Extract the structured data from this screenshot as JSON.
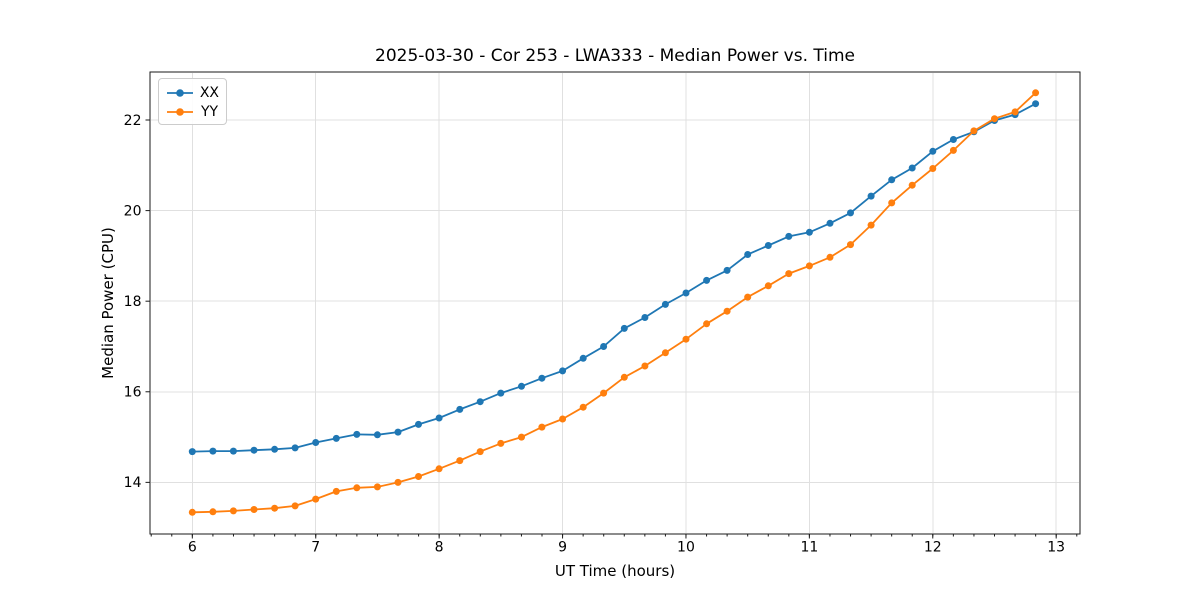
{
  "figure": {
    "title": "2025-03-30 - Cor 253 - LWA333 - Median Power vs. Time",
    "xlabel": "UT Time (hours)",
    "ylabel": "Median Power (CPU)"
  },
  "chart_data": {
    "type": "line",
    "title": "2025-03-30 - Cor 253 - LWA333 - Median Power vs. Time",
    "xlabel": "UT Time (hours)",
    "ylabel": "Median Power (CPU)",
    "xlim": [
      5.657,
      13.193
    ],
    "ylim": [
      12.86,
      23.06
    ],
    "x_ticks": [
      6,
      7,
      8,
      9,
      10,
      11,
      12,
      13
    ],
    "y_ticks": [
      14,
      16,
      18,
      20,
      22
    ],
    "x_minor_tick_step": 0.16667,
    "grid": true,
    "grid_color": "#e0e0e0",
    "spine_color": "#1a1a1a",
    "legend_position": "upper left",
    "marker": "o",
    "x": [
      6,
      6.167,
      6.333,
      6.5,
      6.667,
      6.833,
      7,
      7.167,
      7.333,
      7.5,
      7.667,
      7.833,
      8,
      8.167,
      8.333,
      8.5,
      8.667,
      8.833,
      9,
      9.167,
      9.333,
      9.5,
      9.667,
      9.833,
      10,
      10.167,
      10.333,
      10.5,
      10.667,
      10.833,
      11,
      11.167,
      11.333,
      11.5,
      11.667,
      11.833,
      12,
      12.167,
      12.333,
      12.5,
      12.667,
      12.833
    ],
    "series": [
      {
        "name": "XX",
        "color": "#1f77b4",
        "values": [
          14.68,
          14.69,
          14.69,
          14.71,
          14.73,
          14.76,
          14.88,
          14.97,
          15.06,
          15.05,
          15.11,
          15.28,
          15.42,
          15.61,
          15.78,
          15.97,
          16.12,
          16.3,
          16.46,
          16.74,
          17.0,
          17.4,
          17.64,
          17.93,
          18.18,
          18.46,
          18.68,
          19.03,
          19.23,
          19.43,
          19.52,
          19.72,
          19.95,
          20.32,
          20.68,
          20.94,
          21.31,
          21.57,
          21.74,
          21.99,
          22.12,
          22.36
        ]
      },
      {
        "name": "YY",
        "color": "#ff7f0e",
        "values": [
          13.34,
          13.35,
          13.37,
          13.4,
          13.43,
          13.48,
          13.63,
          13.8,
          13.88,
          13.9,
          14.0,
          14.13,
          14.3,
          14.48,
          14.68,
          14.86,
          15.0,
          15.22,
          15.4,
          15.66,
          15.97,
          16.32,
          16.57,
          16.86,
          17.16,
          17.5,
          17.78,
          18.09,
          18.34,
          18.61,
          18.78,
          18.97,
          19.25,
          19.68,
          20.17,
          20.56,
          20.93,
          21.33,
          21.76,
          22.03,
          22.18,
          22.6
        ]
      }
    ]
  }
}
